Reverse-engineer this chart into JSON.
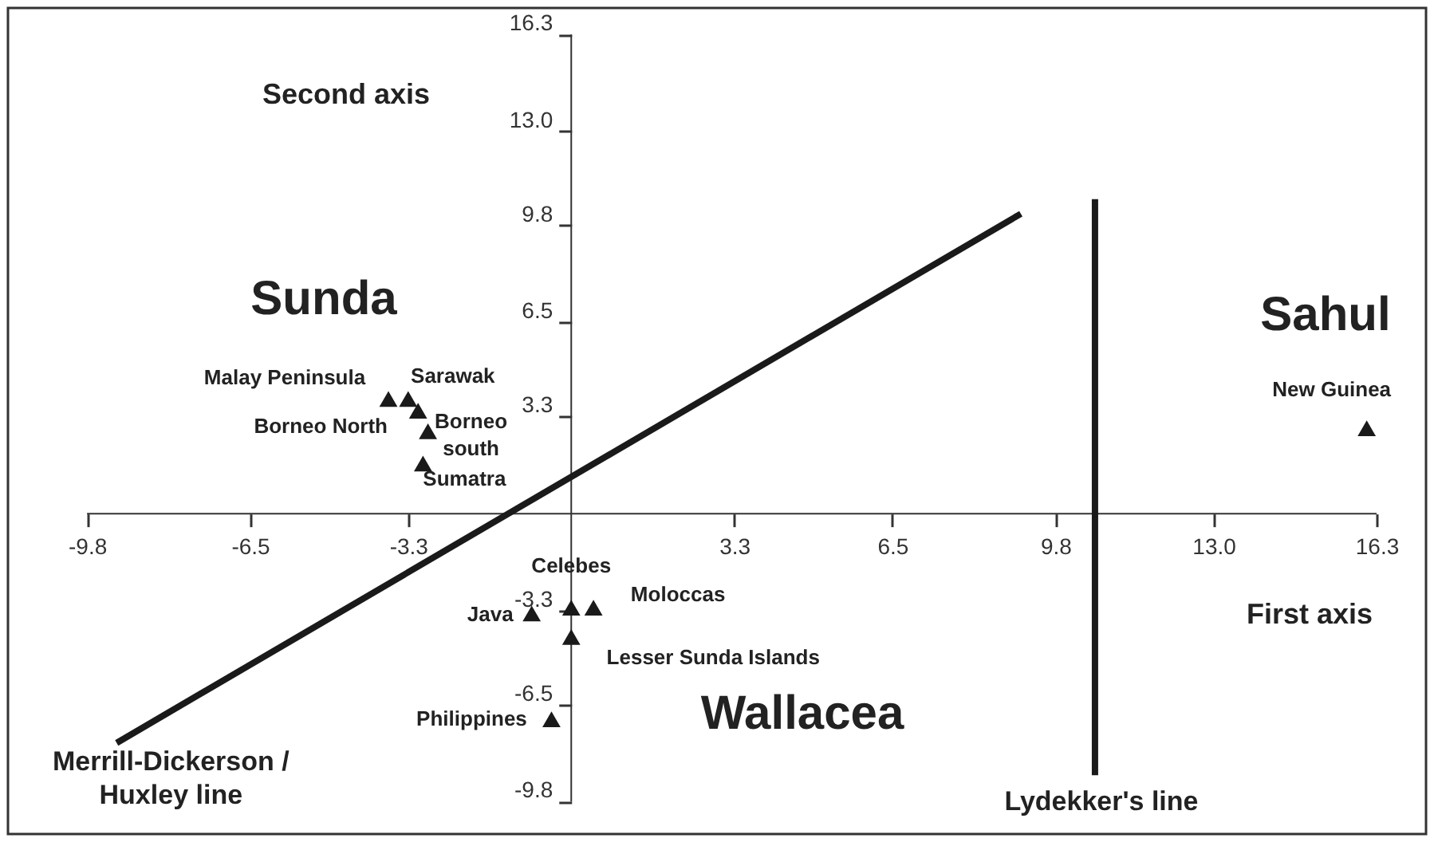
{
  "chart_data": {
    "type": "scatter",
    "xlim": [
      -11.4,
      17.3
    ],
    "ylim": [
      -10.9,
      17.2
    ],
    "xticks": [
      -9.8,
      -6.5,
      -3.3,
      3.3,
      6.5,
      9.8,
      {
        "value": 13,
        "label": "13.0"
      },
      16.3
    ],
    "yticks": [
      -9.8,
      -6.5,
      -3.3,
      3.3,
      6.5,
      9.8,
      {
        "value": 13,
        "label": "13.0"
      },
      16.3
    ],
    "marker": "triangle",
    "series": [
      {
        "color": "#1a1a1a",
        "x": [
          -3.7,
          -3.3,
          -3.1,
          -2.9,
          -3.0,
          -0.8,
          0.0,
          0.45,
          0.0,
          -0.4,
          16.1
        ],
        "values": [
          3.9,
          3.9,
          3.5,
          2.8,
          1.7,
          -3.4,
          -3.2,
          -3.2,
          -4.2,
          -7.0,
          2.9
        ]
      },
      {
        "type": "line",
        "marker": "none",
        "color": "#1a1a1a",
        "x": [
          -9.2,
          9.1
        ],
        "values": [
          -7.8,
          10.2
        ]
      },
      {
        "type": "line",
        "marker": "none",
        "color": "#1a1a1a",
        "x": [
          10.6,
          10.6
        ],
        "values": [
          10.7,
          -8.9
        ]
      }
    ],
    "annotations": [
      {
        "text": "Malay Peninsula",
        "x": -3.7,
        "y": 3.9
      },
      {
        "text": "Sarawak",
        "x": -3.3,
        "y": 3.9
      },
      {
        "text": "Borneo North",
        "x": -3.1,
        "y": 3.5
      },
      {
        "text": "Borneo\nsouth",
        "x": -2.9,
        "y": 2.8
      },
      {
        "text": "Sumatra",
        "x": -3.0,
        "y": 1.7
      },
      {
        "text": "Java",
        "x": -0.8,
        "y": -3.4
      },
      {
        "text": "Celebes",
        "x": 0.0,
        "y": -3.2
      },
      {
        "text": "Moloccas",
        "x": 0.45,
        "y": -3.2
      },
      {
        "text": "Lesser Sunda Islands",
        "x": 0.0,
        "y": -4.2
      },
      {
        "text": "Philippines",
        "x": -0.4,
        "y": -7.0
      },
      {
        "text": "New Guinea",
        "x": 16.1,
        "y": 2.9
      },
      "Second axis",
      "First axis",
      "Sunda",
      "Sahul",
      "Wallacea",
      {
        "text": "Merrill-Dickerson /\nHuxley line",
        "x": -9.2,
        "y": -7.8
      },
      {
        "text": "Lydekker's line",
        "x": 10.6,
        "y": -8.9
      }
    ]
  }
}
